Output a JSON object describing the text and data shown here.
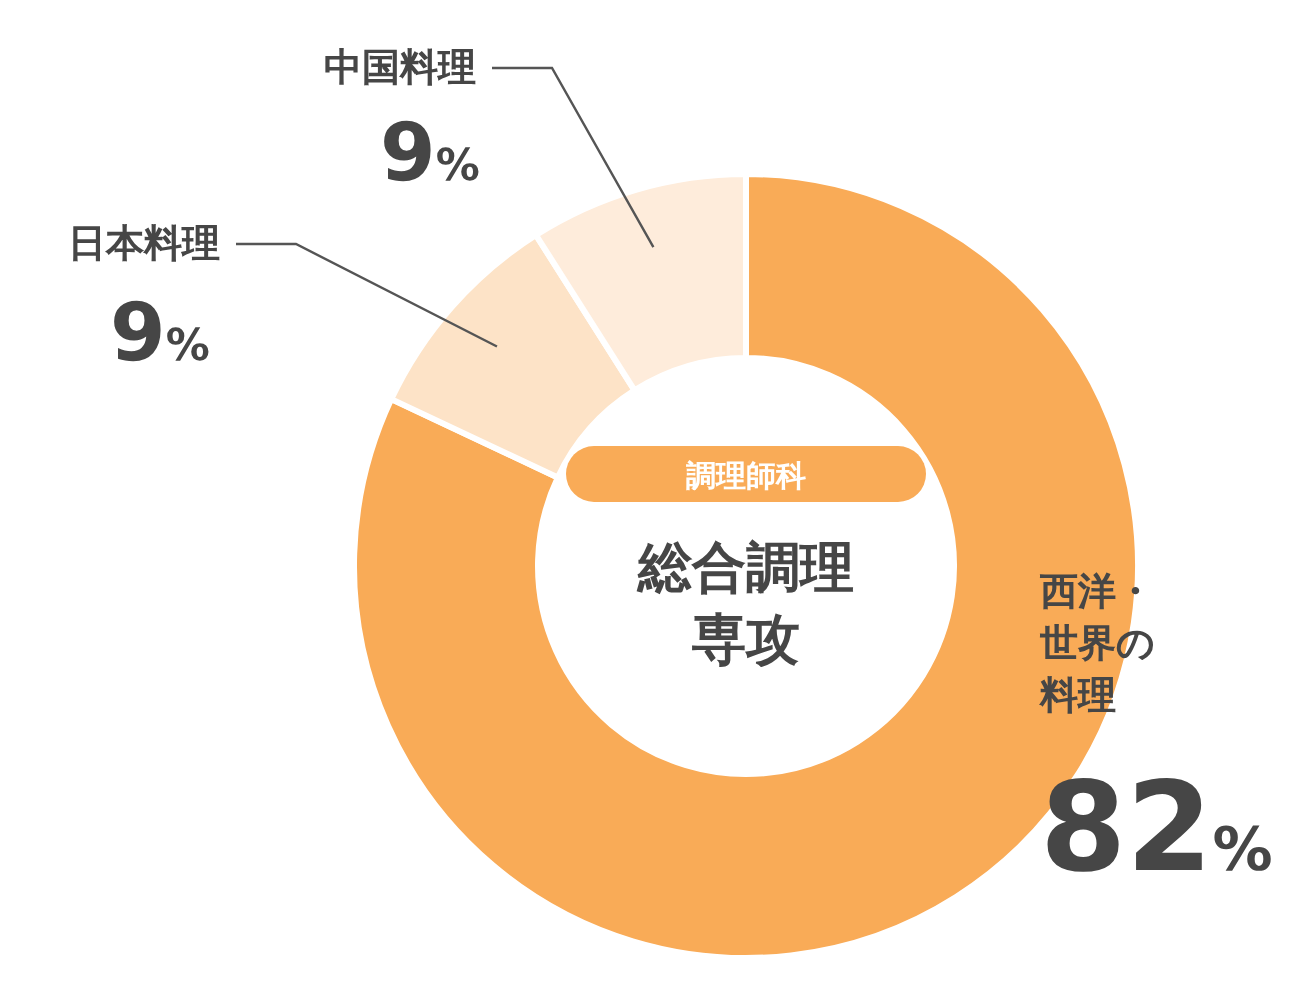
{
  "chart_data": {
    "type": "donut",
    "title": "調理師科",
    "subtitle": "総合調理専攻",
    "categories": [
      "西洋・世界の料理",
      "日本料理",
      "中国料理"
    ],
    "values": [
      82,
      9,
      9
    ],
    "colors": [
      "#f9ab57",
      "#fde3c7",
      "#feecdb"
    ],
    "value_labels": [
      "82%",
      "9%",
      "9%"
    ]
  }
}
